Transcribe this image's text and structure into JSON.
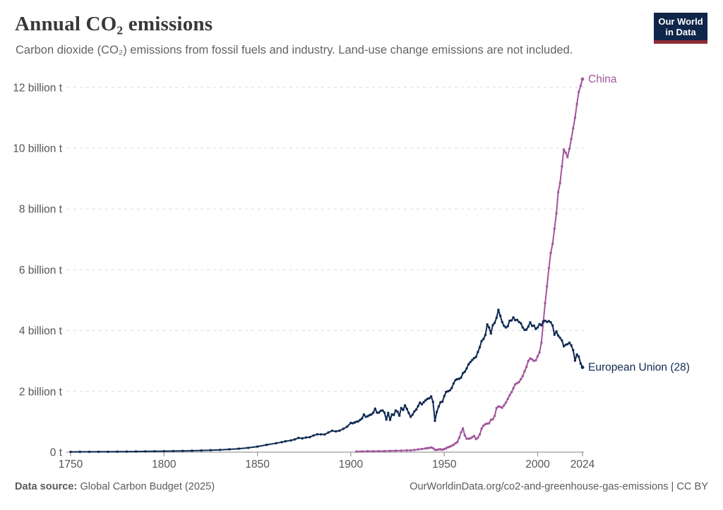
{
  "header": {
    "title": "Annual CO₂ emissions",
    "subtitle": "Carbon dioxide (CO₂) emissions from fossil fuels and industry. Land-use change emissions are not included.",
    "logo": {
      "line1": "Our World",
      "line2": "in Data",
      "bg_color": "#0f2549",
      "accent_color": "#8c2d37"
    }
  },
  "footer": {
    "source_label": "Data source:",
    "source_value": " Global Carbon Budget (2025)",
    "link": "OurWorldinData.org/co2-and-greenhouse-gas-emissions | CC BY"
  },
  "chart_data": {
    "type": "line",
    "title": "Annual CO₂ emissions",
    "xlabel": "",
    "ylabel": "",
    "unit": "billion t",
    "xlim": [
      1750,
      2024
    ],
    "ylim": [
      0,
      12.4
    ],
    "x_ticks": [
      1750,
      1800,
      1850,
      1900,
      1950,
      2000,
      2024
    ],
    "y_ticks": [
      0,
      2,
      4,
      6,
      8,
      10,
      12
    ],
    "y_tick_suffix": " billion t",
    "y_zero_label": "0 t",
    "grid": "horizontal-dashed",
    "legend_position": "line-end-labels",
    "axis_color": "#9a9a9a",
    "grid_color": "#dcdcdc",
    "tick_label_color": "#555555",
    "series": [
      {
        "name": "China",
        "color": "#a2559c",
        "points": [
          [
            1903,
            0.02
          ],
          [
            1906,
            0.025
          ],
          [
            1909,
            0.03
          ],
          [
            1912,
            0.03
          ],
          [
            1915,
            0.032
          ],
          [
            1918,
            0.038
          ],
          [
            1921,
            0.042
          ],
          [
            1924,
            0.048
          ],
          [
            1927,
            0.052
          ],
          [
            1930,
            0.058
          ],
          [
            1932,
            0.06
          ],
          [
            1934,
            0.072
          ],
          [
            1936,
            0.09
          ],
          [
            1938,
            0.104
          ],
          [
            1940,
            0.122
          ],
          [
            1941,
            0.132
          ],
          [
            1942,
            0.142
          ],
          [
            1943,
            0.152
          ],
          [
            1944,
            0.132
          ],
          [
            1945,
            0.082
          ],
          [
            1946,
            0.072
          ],
          [
            1947,
            0.09
          ],
          [
            1948,
            0.092
          ],
          [
            1949,
            0.082
          ],
          [
            1950,
            0.102
          ],
          [
            1951,
            0.13
          ],
          [
            1952,
            0.16
          ],
          [
            1953,
            0.182
          ],
          [
            1954,
            0.21
          ],
          [
            1955,
            0.242
          ],
          [
            1956,
            0.292
          ],
          [
            1957,
            0.332
          ],
          [
            1958,
            0.472
          ],
          [
            1959,
            0.652
          ],
          [
            1960,
            0.782
          ],
          [
            1961,
            0.552
          ],
          [
            1962,
            0.442
          ],
          [
            1963,
            0.442
          ],
          [
            1964,
            0.452
          ],
          [
            1965,
            0.492
          ],
          [
            1966,
            0.532
          ],
          [
            1967,
            0.432
          ],
          [
            1968,
            0.472
          ],
          [
            1969,
            0.582
          ],
          [
            1970,
            0.772
          ],
          [
            1971,
            0.872
          ],
          [
            1972,
            0.922
          ],
          [
            1973,
            0.942
          ],
          [
            1974,
            0.952
          ],
          [
            1975,
            1.062
          ],
          [
            1976,
            1.082
          ],
          [
            1977,
            1.192
          ],
          [
            1978,
            1.452
          ],
          [
            1979,
            1.502
          ],
          [
            1980,
            1.492
          ],
          [
            1981,
            1.462
          ],
          [
            1982,
            1.542
          ],
          [
            1983,
            1.632
          ],
          [
            1984,
            1.752
          ],
          [
            1985,
            1.872
          ],
          [
            1986,
            1.972
          ],
          [
            1987,
            2.102
          ],
          [
            1988,
            2.232
          ],
          [
            1989,
            2.272
          ],
          [
            1990,
            2.302
          ],
          [
            1991,
            2.402
          ],
          [
            1992,
            2.502
          ],
          [
            1993,
            2.662
          ],
          [
            1994,
            2.802
          ],
          [
            1995,
            3.002
          ],
          [
            1996,
            3.082
          ],
          [
            1997,
            3.052
          ],
          [
            1998,
            3.002
          ],
          [
            1999,
            3.022
          ],
          [
            2000,
            3.152
          ],
          [
            2001,
            3.282
          ],
          [
            2002,
            3.602
          ],
          [
            2003,
            4.252
          ],
          [
            2004,
            4.902
          ],
          [
            2005,
            5.452
          ],
          [
            2006,
            6.052
          ],
          [
            2007,
            6.552
          ],
          [
            2008,
            6.852
          ],
          [
            2009,
            7.352
          ],
          [
            2010,
            7.852
          ],
          [
            2011,
            8.552
          ],
          [
            2012,
            8.852
          ],
          [
            2013,
            9.402
          ],
          [
            2014,
            9.952
          ],
          [
            2015,
            9.852
          ],
          [
            2016,
            9.702
          ],
          [
            2017,
            9.982
          ],
          [
            2018,
            10.302
          ],
          [
            2019,
            10.652
          ],
          [
            2020,
            11.002
          ],
          [
            2021,
            11.452
          ],
          [
            2022,
            11.852
          ],
          [
            2023,
            12.052
          ],
          [
            2024,
            12.272
          ]
        ]
      },
      {
        "name": "European Union (28)",
        "color": "#0e2a52",
        "points": [
          [
            1750,
            0.01
          ],
          [
            1755,
            0.011
          ],
          [
            1760,
            0.012
          ],
          [
            1765,
            0.013
          ],
          [
            1770,
            0.015
          ],
          [
            1775,
            0.017
          ],
          [
            1780,
            0.019
          ],
          [
            1785,
            0.022
          ],
          [
            1790,
            0.025
          ],
          [
            1795,
            0.028
          ],
          [
            1800,
            0.032
          ],
          [
            1805,
            0.036
          ],
          [
            1810,
            0.041
          ],
          [
            1815,
            0.047
          ],
          [
            1820,
            0.055
          ],
          [
            1825,
            0.064
          ],
          [
            1830,
            0.075
          ],
          [
            1835,
            0.092
          ],
          [
            1840,
            0.113
          ],
          [
            1845,
            0.142
          ],
          [
            1850,
            0.183
          ],
          [
            1855,
            0.242
          ],
          [
            1860,
            0.295
          ],
          [
            1863,
            0.33
          ],
          [
            1865,
            0.357
          ],
          [
            1868,
            0.388
          ],
          [
            1870,
            0.42
          ],
          [
            1872,
            0.468
          ],
          [
            1874,
            0.452
          ],
          [
            1876,
            0.482
          ],
          [
            1878,
            0.495
          ],
          [
            1880,
            0.548
          ],
          [
            1882,
            0.588
          ],
          [
            1884,
            0.585
          ],
          [
            1886,
            0.583
          ],
          [
            1888,
            0.648
          ],
          [
            1890,
            0.703
          ],
          [
            1892,
            0.682
          ],
          [
            1894,
            0.708
          ],
          [
            1896,
            0.768
          ],
          [
            1898,
            0.838
          ],
          [
            1900,
            0.962
          ],
          [
            1901,
            0.952
          ],
          [
            1902,
            0.972
          ],
          [
            1903,
            1.002
          ],
          [
            1904,
            1.012
          ],
          [
            1905,
            1.062
          ],
          [
            1906,
            1.112
          ],
          [
            1907,
            1.238
          ],
          [
            1908,
            1.162
          ],
          [
            1909,
            1.182
          ],
          [
            1910,
            1.218
          ],
          [
            1911,
            1.238
          ],
          [
            1912,
            1.298
          ],
          [
            1913,
            1.432
          ],
          [
            1914,
            1.302
          ],
          [
            1915,
            1.298
          ],
          [
            1916,
            1.362
          ],
          [
            1917,
            1.372
          ],
          [
            1918,
            1.302
          ],
          [
            1919,
            1.072
          ],
          [
            1920,
            1.292
          ],
          [
            1921,
            1.062
          ],
          [
            1922,
            1.242
          ],
          [
            1923,
            1.222
          ],
          [
            1924,
            1.372
          ],
          [
            1925,
            1.332
          ],
          [
            1926,
            1.202
          ],
          [
            1927,
            1.452
          ],
          [
            1928,
            1.388
          ],
          [
            1929,
            1.538
          ],
          [
            1930,
            1.422
          ],
          [
            1931,
            1.288
          ],
          [
            1932,
            1.162
          ],
          [
            1933,
            1.232
          ],
          [
            1934,
            1.342
          ],
          [
            1935,
            1.398
          ],
          [
            1936,
            1.512
          ],
          [
            1937,
            1.632
          ],
          [
            1938,
            1.572
          ],
          [
            1939,
            1.642
          ],
          [
            1940,
            1.702
          ],
          [
            1941,
            1.752
          ],
          [
            1942,
            1.772
          ],
          [
            1943,
            1.832
          ],
          [
            1944,
            1.652
          ],
          [
            1945,
            1.032
          ],
          [
            1946,
            1.322
          ],
          [
            1947,
            1.502
          ],
          [
            1948,
            1.642
          ],
          [
            1949,
            1.662
          ],
          [
            1950,
            1.842
          ],
          [
            1951,
            1.982
          ],
          [
            1952,
            2.002
          ],
          [
            1953,
            2.032
          ],
          [
            1954,
            2.112
          ],
          [
            1955,
            2.262
          ],
          [
            1956,
            2.372
          ],
          [
            1957,
            2.402
          ],
          [
            1958,
            2.412
          ],
          [
            1959,
            2.452
          ],
          [
            1960,
            2.602
          ],
          [
            1961,
            2.642
          ],
          [
            1962,
            2.752
          ],
          [
            1963,
            2.892
          ],
          [
            1964,
            2.962
          ],
          [
            1965,
            3.032
          ],
          [
            1966,
            3.092
          ],
          [
            1967,
            3.132
          ],
          [
            1968,
            3.292
          ],
          [
            1969,
            3.452
          ],
          [
            1970,
            3.652
          ],
          [
            1971,
            3.722
          ],
          [
            1972,
            3.852
          ],
          [
            1973,
            4.202
          ],
          [
            1974,
            4.102
          ],
          [
            1975,
            3.902
          ],
          [
            1976,
            4.182
          ],
          [
            1977,
            4.252
          ],
          [
            1978,
            4.422
          ],
          [
            1979,
            4.682
          ],
          [
            1980,
            4.482
          ],
          [
            1981,
            4.282
          ],
          [
            1982,
            4.152
          ],
          [
            1983,
            4.102
          ],
          [
            1984,
            4.142
          ],
          [
            1985,
            4.322
          ],
          [
            1986,
            4.332
          ],
          [
            1987,
            4.432
          ],
          [
            1988,
            4.342
          ],
          [
            1989,
            4.352
          ],
          [
            1990,
            4.282
          ],
          [
            1991,
            4.242
          ],
          [
            1992,
            4.102
          ],
          [
            1993,
            4.022
          ],
          [
            1994,
            4.032
          ],
          [
            1995,
            4.132
          ],
          [
            1996,
            4.272
          ],
          [
            1997,
            4.152
          ],
          [
            1998,
            4.162
          ],
          [
            1999,
            4.052
          ],
          [
            2000,
            4.102
          ],
          [
            2001,
            4.212
          ],
          [
            2002,
            4.172
          ],
          [
            2003,
            4.302
          ],
          [
            2004,
            4.322
          ],
          [
            2005,
            4.282
          ],
          [
            2006,
            4.312
          ],
          [
            2007,
            4.272
          ],
          [
            2008,
            4.162
          ],
          [
            2009,
            3.862
          ],
          [
            2010,
            3.972
          ],
          [
            2011,
            3.832
          ],
          [
            2012,
            3.762
          ],
          [
            2013,
            3.672
          ],
          [
            2014,
            3.482
          ],
          [
            2015,
            3.532
          ],
          [
            2016,
            3.552
          ],
          [
            2017,
            3.602
          ],
          [
            2018,
            3.512
          ],
          [
            2019,
            3.352
          ],
          [
            2020,
            3.012
          ],
          [
            2021,
            3.212
          ],
          [
            2022,
            3.142
          ],
          [
            2023,
            2.912
          ],
          [
            2024,
            2.792
          ]
        ]
      }
    ]
  }
}
